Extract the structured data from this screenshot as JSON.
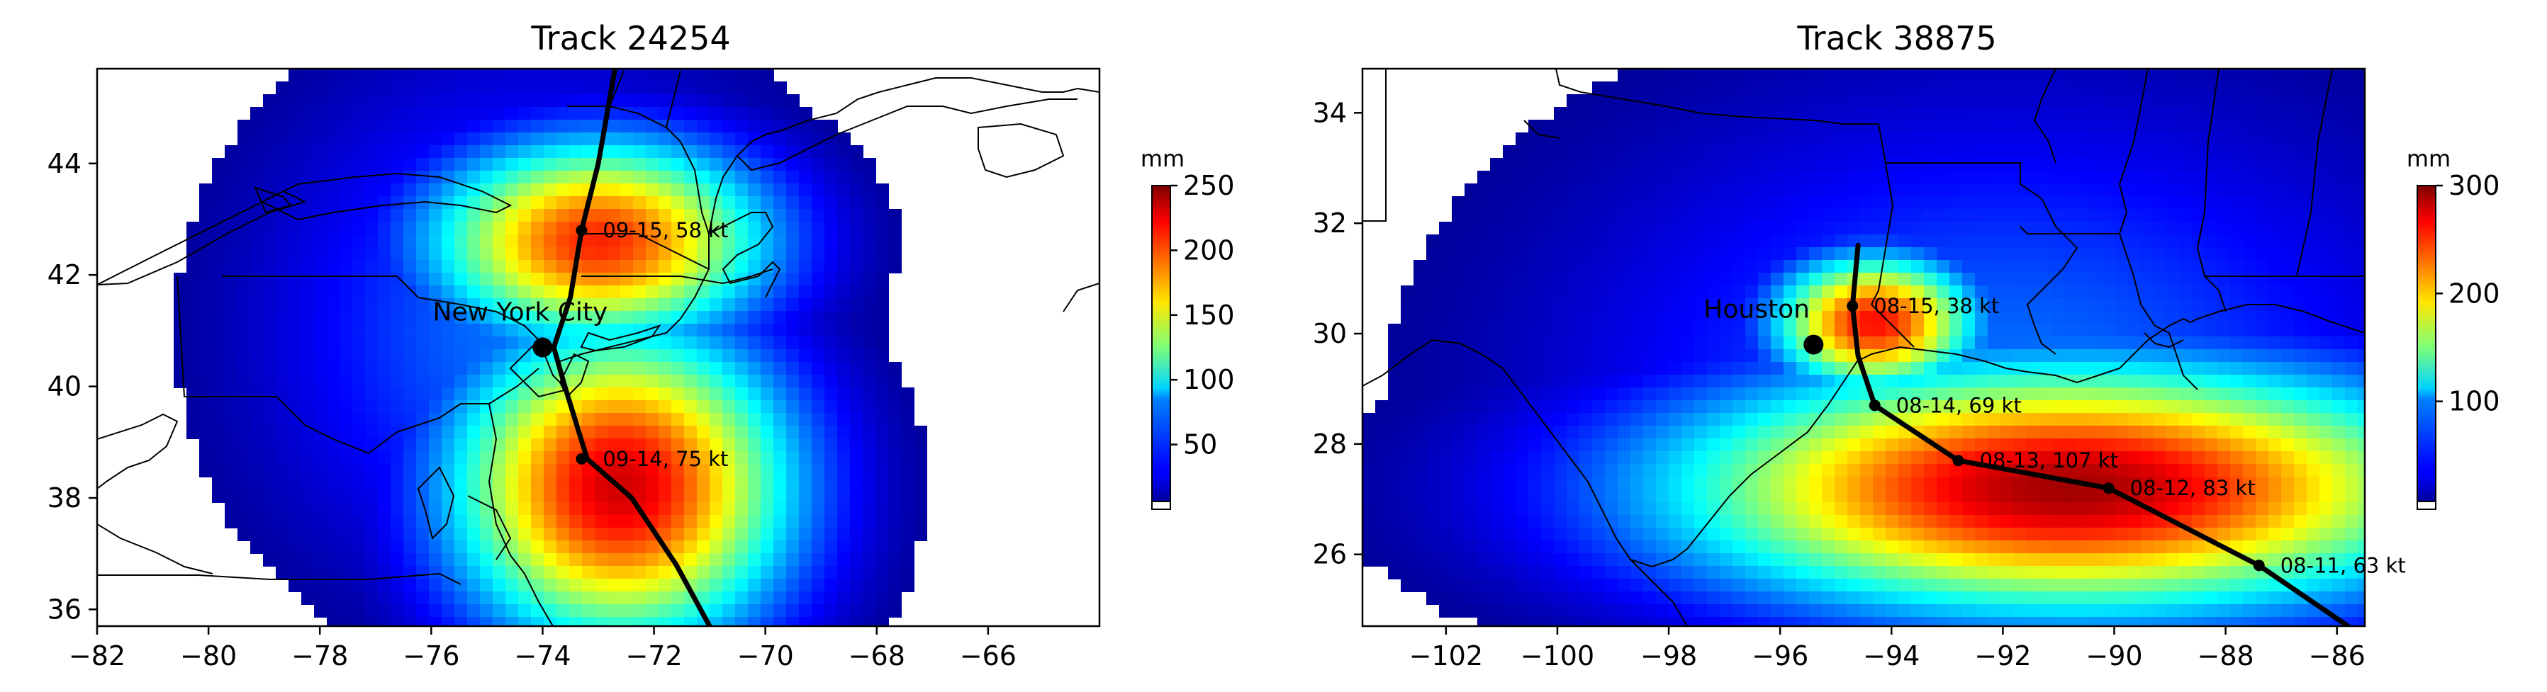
{
  "chart_data": [
    {
      "type": "heatmap",
      "title": "Track 24254",
      "xlim": [
        -82,
        -64
      ],
      "ylim": [
        35.7,
        45.7
      ],
      "x_ticks": [
        -82,
        -80,
        -78,
        -76,
        -74,
        -72,
        -70,
        -68,
        -66
      ],
      "y_ticks": [
        36,
        38,
        40,
        42,
        44
      ],
      "x_tick_labels": [
        "−82",
        "−80",
        "−78",
        "−76",
        "−74",
        "−72",
        "−70",
        "−68",
        "−66"
      ],
      "y_tick_labels": [
        "36",
        "38",
        "40",
        "42",
        "44"
      ],
      "colorbar": {
        "unit": "mm",
        "vmin": 0,
        "vmax": 250,
        "ticks": [
          50,
          100,
          150,
          200,
          250
        ],
        "tick_labels": [
          "50",
          "100",
          "150",
          "200",
          "250"
        ],
        "colormap": "jet"
      },
      "city": {
        "name": "New York City",
        "lon": -74.0,
        "lat": 40.7
      },
      "track": [
        [
          -71.0,
          35.7
        ],
        [
          -71.6,
          36.8
        ],
        [
          -72.4,
          38.0
        ],
        [
          -73.2,
          38.7
        ],
        [
          -73.6,
          40.0
        ],
        [
          -73.8,
          40.7
        ],
        [
          -73.5,
          41.6
        ],
        [
          -73.3,
          42.8
        ],
        [
          -73.0,
          44.0
        ],
        [
          -72.7,
          45.7
        ]
      ],
      "track_points": [
        {
          "lon": -73.3,
          "lat": 38.7,
          "label": "09-14, 75 kt"
        },
        {
          "lon": -73.3,
          "lat": 42.8,
          "label": "09-15, 58 kt"
        }
      ],
      "rain_bands": [
        {
          "cx": -72.6,
          "cy": 38.2,
          "sx": 3.0,
          "sy": 2.8,
          "v": 230
        },
        {
          "cx": -73.0,
          "cy": 42.6,
          "sx": 3.0,
          "sy": 1.8,
          "v": 210
        },
        {
          "cx": -74.2,
          "cy": 41.0,
          "sx": 4.5,
          "sy": 4.5,
          "v": 60
        }
      ]
    },
    {
      "type": "heatmap",
      "title": "Track 38875",
      "xlim": [
        -103.5,
        -85.5
      ],
      "ylim": [
        24.7,
        34.8
      ],
      "x_ticks": [
        -102,
        -100,
        -98,
        -96,
        -94,
        -92,
        -90,
        -88,
        -86
      ],
      "y_ticks": [
        26,
        28,
        30,
        32,
        34
      ],
      "x_tick_labels": [
        "−102",
        "−100",
        "−98",
        "−96",
        "−94",
        "−92",
        "−90",
        "−88",
        "−86"
      ],
      "y_tick_labels": [
        "26",
        "28",
        "30",
        "32",
        "34"
      ],
      "colorbar": {
        "unit": "mm",
        "vmin": 0,
        "vmax": 300,
        "ticks": [
          100,
          200,
          300
        ],
        "tick_labels": [
          "100",
          "200",
          "300"
        ],
        "colormap": "jet"
      },
      "city": {
        "name": "Houston",
        "lon": -95.4,
        "lat": 29.8
      },
      "track": [
        [
          -85.8,
          24.7
        ],
        [
          -87.4,
          25.8
        ],
        [
          -90.1,
          27.2
        ],
        [
          -92.8,
          27.7
        ],
        [
          -94.3,
          28.7
        ],
        [
          -94.6,
          29.6
        ],
        [
          -94.7,
          30.5
        ],
        [
          -94.6,
          31.6
        ]
      ],
      "track_points": [
        {
          "lon": -87.4,
          "lat": 25.8,
          "label": "08-11, 63 kt"
        },
        {
          "lon": -90.1,
          "lat": 27.2,
          "label": "08-12, 83 kt"
        },
        {
          "lon": -92.8,
          "lat": 27.7,
          "label": "08-13, 107 kt"
        },
        {
          "lon": -94.3,
          "lat": 28.7,
          "label": "08-14, 69 kt"
        },
        {
          "lon": -94.7,
          "lat": 30.5,
          "label": "08-15, 38 kt"
        }
      ],
      "rain_bands": [
        {
          "cx": -90.8,
          "cy": 27.2,
          "sx": 7.0,
          "sy": 2.2,
          "v": 290
        },
        {
          "cx": -94.3,
          "cy": 30.2,
          "sx": 1.8,
          "sy": 1.2,
          "v": 260
        },
        {
          "cx": -92.0,
          "cy": 29.0,
          "sx": 7.5,
          "sy": 5.0,
          "v": 70
        }
      ]
    }
  ]
}
